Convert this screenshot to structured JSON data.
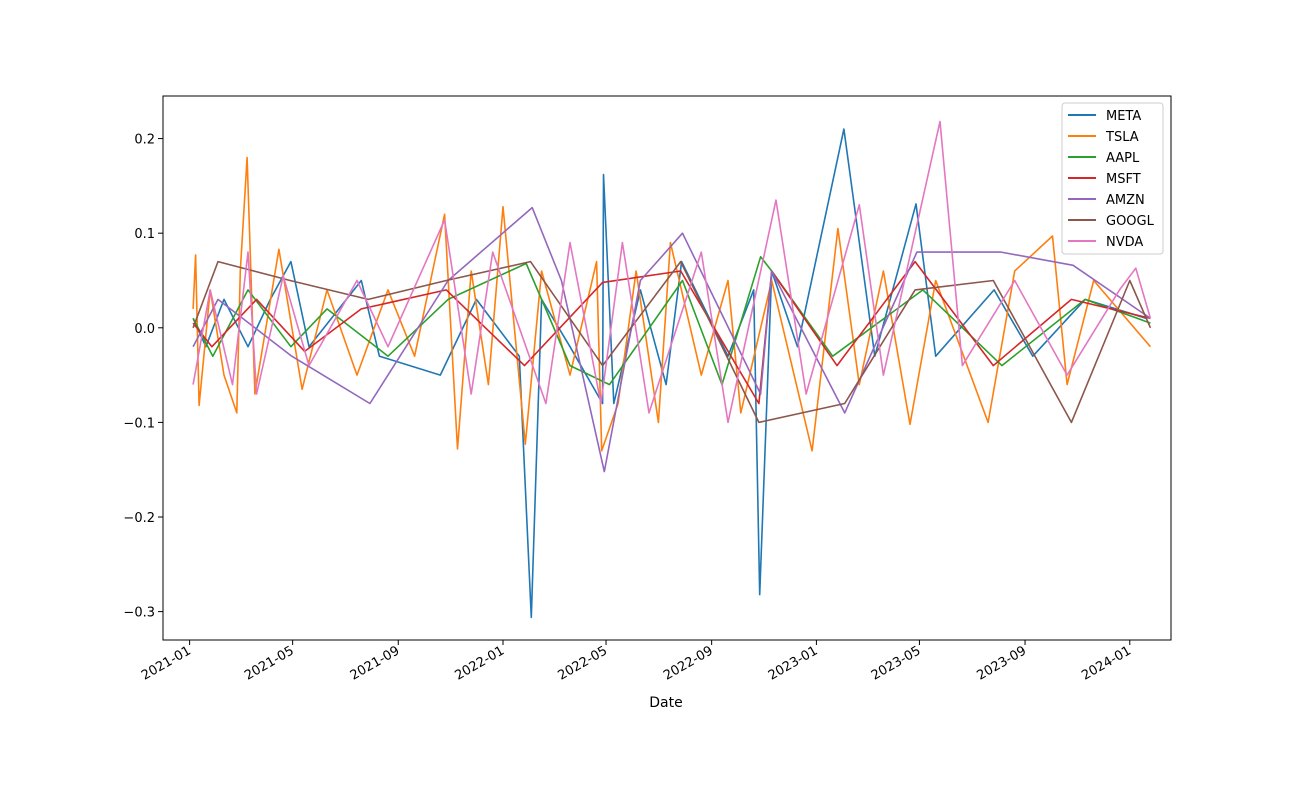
{
  "chart_data": {
    "type": "line",
    "xlabel": "Date",
    "ylabel": "",
    "x_axis_type": "date",
    "xlim": [
      "2020-12-01",
      "2024-02-18"
    ],
    "ylim": [
      -0.33,
      0.245
    ],
    "x_ticks": [
      {
        "date": "2021-01-01",
        "label": "2021-01"
      },
      {
        "date": "2021-05-01",
        "label": "2021-05"
      },
      {
        "date": "2021-09-01",
        "label": "2021-09"
      },
      {
        "date": "2022-01-01",
        "label": "2022-01"
      },
      {
        "date": "2022-05-01",
        "label": "2022-05"
      },
      {
        "date": "2022-09-01",
        "label": "2022-09"
      },
      {
        "date": "2023-01-01",
        "label": "2023-01"
      },
      {
        "date": "2023-05-01",
        "label": "2023-05"
      },
      {
        "date": "2023-09-01",
        "label": "2023-09"
      },
      {
        "date": "2024-01-01",
        "label": "2024-01"
      }
    ],
    "y_ticks": [
      {
        "value": 0.2,
        "label": "0.2"
      },
      {
        "value": 0.1,
        "label": "0.1"
      },
      {
        "value": 0.0,
        "label": "0.0"
      },
      {
        "value": -0.1,
        "label": "−0.1"
      },
      {
        "value": -0.2,
        "label": "−0.2"
      },
      {
        "value": -0.3,
        "label": "−0.3"
      }
    ],
    "legend_position": "top-right",
    "grid": false,
    "series": [
      {
        "name": "META",
        "color": "#1f77b4",
        "points": [
          [
            "2021-01-05",
            0.01
          ],
          [
            "2021-01-20",
            -0.02
          ],
          [
            "2021-02-10",
            0.03
          ],
          [
            "2021-03-10",
            -0.02
          ],
          [
            "2021-04-05",
            0.03
          ],
          [
            "2021-04-29",
            0.07
          ],
          [
            "2021-05-20",
            -0.02
          ],
          [
            "2021-07-20",
            0.05
          ],
          [
            "2021-08-10",
            -0.03
          ],
          [
            "2021-10-20",
            -0.05
          ],
          [
            "2021-12-01",
            0.03
          ],
          [
            "2022-01-20",
            -0.03
          ],
          [
            "2022-02-03",
            -0.306
          ],
          [
            "2022-02-15",
            0.03
          ],
          [
            "2022-03-20",
            -0.02
          ],
          [
            "2022-04-27",
            -0.08
          ],
          [
            "2022-04-28",
            0.162
          ],
          [
            "2022-05-10",
            -0.08
          ],
          [
            "2022-06-10",
            0.04
          ],
          [
            "2022-07-10",
            -0.06
          ],
          [
            "2022-07-28",
            0.07
          ],
          [
            "2022-09-20",
            -0.03
          ],
          [
            "2022-10-20",
            0.04
          ],
          [
            "2022-10-27",
            -0.282
          ],
          [
            "2022-11-10",
            0.06
          ],
          [
            "2022-12-10",
            -0.02
          ],
          [
            "2023-02-02",
            0.21
          ],
          [
            "2023-03-10",
            -0.03
          ],
          [
            "2023-04-27",
            0.131
          ],
          [
            "2023-05-20",
            -0.03
          ],
          [
            "2023-07-27",
            0.04
          ],
          [
            "2023-09-10",
            -0.03
          ],
          [
            "2023-11-10",
            0.03
          ],
          [
            "2024-01-20",
            0.01
          ]
        ]
      },
      {
        "name": "TSLA",
        "color": "#ff7f0e",
        "points": [
          [
            "2021-01-05",
            0.02
          ],
          [
            "2021-01-08",
            0.077
          ],
          [
            "2021-01-12",
            -0.082
          ],
          [
            "2021-01-25",
            0.04
          ],
          [
            "2021-02-10",
            -0.05
          ],
          [
            "2021-02-25",
            -0.09
          ],
          [
            "2021-03-01",
            0.06
          ],
          [
            "2021-03-09",
            0.18
          ],
          [
            "2021-03-18",
            -0.07
          ],
          [
            "2021-04-15",
            0.083
          ],
          [
            "2021-05-12",
            -0.065
          ],
          [
            "2021-06-10",
            0.04
          ],
          [
            "2021-07-15",
            -0.05
          ],
          [
            "2021-08-20",
            0.04
          ],
          [
            "2021-09-20",
            -0.03
          ],
          [
            "2021-10-25",
            0.12
          ],
          [
            "2021-11-09",
            -0.128
          ],
          [
            "2021-11-25",
            0.06
          ],
          [
            "2021-12-15",
            -0.06
          ],
          [
            "2022-01-01",
            0.128
          ],
          [
            "2022-01-27",
            -0.123
          ],
          [
            "2022-02-15",
            0.06
          ],
          [
            "2022-03-20",
            -0.05
          ],
          [
            "2022-04-20",
            0.07
          ],
          [
            "2022-04-26",
            -0.13
          ],
          [
            "2022-05-15",
            -0.08
          ],
          [
            "2022-06-05",
            0.06
          ],
          [
            "2022-07-01",
            -0.1
          ],
          [
            "2022-07-15",
            0.09
          ],
          [
            "2022-08-20",
            -0.05
          ],
          [
            "2022-09-20",
            0.05
          ],
          [
            "2022-10-05",
            -0.09
          ],
          [
            "2022-11-10",
            0.05
          ],
          [
            "2022-12-27",
            -0.13
          ],
          [
            "2023-01-26",
            0.105
          ],
          [
            "2023-02-20",
            -0.06
          ],
          [
            "2023-03-20",
            0.06
          ],
          [
            "2023-04-20",
            -0.102
          ],
          [
            "2023-05-20",
            0.05
          ],
          [
            "2023-07-20",
            -0.1
          ],
          [
            "2023-08-20",
            0.06
          ],
          [
            "2023-10-03",
            0.097
          ],
          [
            "2023-10-20",
            -0.06
          ],
          [
            "2023-11-20",
            0.05
          ],
          [
            "2024-01-25",
            -0.02
          ]
        ]
      },
      {
        "name": "AAPL",
        "color": "#2ca02c",
        "points": [
          [
            "2021-01-05",
            0.01
          ],
          [
            "2021-01-28",
            -0.03
          ],
          [
            "2021-03-10",
            0.04
          ],
          [
            "2021-04-29",
            -0.02
          ],
          [
            "2021-06-10",
            0.02
          ],
          [
            "2021-08-20",
            -0.03
          ],
          [
            "2021-10-29",
            0.03
          ],
          [
            "2022-01-28",
            0.068
          ],
          [
            "2022-03-20",
            -0.04
          ],
          [
            "2022-05-05",
            -0.06
          ],
          [
            "2022-07-29",
            0.05
          ],
          [
            "2022-09-13",
            -0.06
          ],
          [
            "2022-10-28",
            0.075
          ],
          [
            "2022-11-10",
            0.06
          ],
          [
            "2023-01-20",
            -0.03
          ],
          [
            "2023-05-05",
            0.04
          ],
          [
            "2023-08-05",
            -0.04
          ],
          [
            "2023-11-10",
            0.03
          ],
          [
            "2024-01-25",
            0.005
          ]
        ]
      },
      {
        "name": "MSFT",
        "color": "#d62728",
        "points": [
          [
            "2021-01-05",
            0.005
          ],
          [
            "2021-01-27",
            -0.02
          ],
          [
            "2021-03-20",
            0.03
          ],
          [
            "2021-05-15",
            -0.025
          ],
          [
            "2021-07-20",
            0.02
          ],
          [
            "2021-10-27",
            0.04
          ],
          [
            "2022-01-26",
            -0.04
          ],
          [
            "2022-04-27",
            0.048
          ],
          [
            "2022-07-27",
            0.06
          ],
          [
            "2022-10-26",
            -0.08
          ],
          [
            "2022-11-10",
            0.06
          ],
          [
            "2023-01-25",
            -0.04
          ],
          [
            "2023-04-26",
            0.07
          ],
          [
            "2023-07-26",
            -0.04
          ],
          [
            "2023-10-25",
            0.03
          ],
          [
            "2024-01-25",
            0.01
          ]
        ]
      },
      {
        "name": "AMZN",
        "color": "#9467bd",
        "points": [
          [
            "2021-01-05",
            -0.02
          ],
          [
            "2021-02-03",
            0.03
          ],
          [
            "2021-04-30",
            -0.03
          ],
          [
            "2021-07-30",
            -0.08
          ],
          [
            "2021-10-29",
            0.05
          ],
          [
            "2022-02-04",
            0.127
          ],
          [
            "2022-03-10",
            0.05
          ],
          [
            "2022-04-29",
            -0.152
          ],
          [
            "2022-06-10",
            0.05
          ],
          [
            "2022-07-29",
            0.1
          ],
          [
            "2022-10-28",
            -0.07
          ],
          [
            "2022-11-10",
            0.06
          ],
          [
            "2023-02-03",
            -0.09
          ],
          [
            "2023-04-28",
            0.08
          ],
          [
            "2023-08-04",
            0.08
          ],
          [
            "2023-10-27",
            0.066
          ],
          [
            "2024-01-25",
            0.01
          ]
        ]
      },
      {
        "name": "GOOGL",
        "color": "#8c564b",
        "points": [
          [
            "2021-01-05",
            0.0
          ],
          [
            "2021-02-03",
            0.07
          ],
          [
            "2021-04-28",
            0.05
          ],
          [
            "2021-07-28",
            0.03
          ],
          [
            "2021-10-27",
            0.05
          ],
          [
            "2022-02-02",
            0.07
          ],
          [
            "2022-04-27",
            -0.04
          ],
          [
            "2022-07-27",
            0.07
          ],
          [
            "2022-10-26",
            -0.1
          ],
          [
            "2023-02-03",
            -0.08
          ],
          [
            "2023-04-26",
            0.04
          ],
          [
            "2023-07-26",
            0.05
          ],
          [
            "2023-10-25",
            -0.1
          ],
          [
            "2024-01-01",
            0.05
          ],
          [
            "2024-01-25",
            0.0
          ]
        ]
      },
      {
        "name": "NVDA",
        "color": "#e377c2",
        "points": [
          [
            "2021-01-05",
            -0.06
          ],
          [
            "2021-01-25",
            0.04
          ],
          [
            "2021-02-20",
            -0.06
          ],
          [
            "2021-03-10",
            0.08
          ],
          [
            "2021-03-20",
            -0.07
          ],
          [
            "2021-04-20",
            0.055
          ],
          [
            "2021-05-20",
            -0.04
          ],
          [
            "2021-07-15",
            0.05
          ],
          [
            "2021-08-20",
            -0.02
          ],
          [
            "2021-10-25",
            0.114
          ],
          [
            "2021-11-25",
            -0.07
          ],
          [
            "2021-12-20",
            0.08
          ],
          [
            "2022-02-20",
            -0.08
          ],
          [
            "2022-03-20",
            0.09
          ],
          [
            "2022-04-25",
            -0.08
          ],
          [
            "2022-05-20",
            0.09
          ],
          [
            "2022-06-20",
            -0.09
          ],
          [
            "2022-08-20",
            0.08
          ],
          [
            "2022-09-20",
            -0.1
          ],
          [
            "2022-11-15",
            0.135
          ],
          [
            "2022-12-20",
            -0.07
          ],
          [
            "2023-02-20",
            0.13
          ],
          [
            "2023-03-20",
            -0.05
          ],
          [
            "2023-05-25",
            0.218
          ],
          [
            "2023-06-20",
            -0.04
          ],
          [
            "2023-08-20",
            0.05
          ],
          [
            "2023-10-20",
            -0.05
          ],
          [
            "2023-12-20",
            0.04
          ],
          [
            "2024-01-08",
            0.063
          ],
          [
            "2024-01-25",
            0.01
          ]
        ]
      }
    ]
  }
}
